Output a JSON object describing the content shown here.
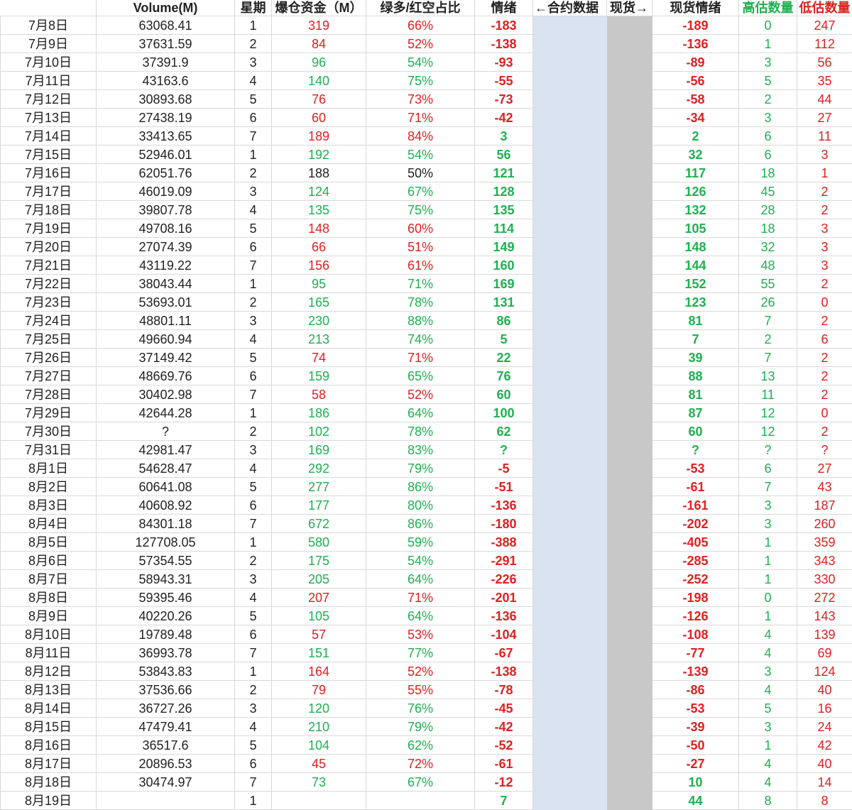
{
  "columns": {
    "date": "",
    "volume": "Volume(M)",
    "weekday": "星期",
    "liquidation": "爆仓资金（M）",
    "long_short_ratio": "绿多/红空占比",
    "sentiment": "情绪",
    "contract_data": "←合约数据",
    "spot": "现货→",
    "spot_sentiment": "现货情绪",
    "high_count": "高估数量",
    "low_count": "低估数量"
  },
  "colors": {
    "red": "#e02020",
    "green": "#1fb050",
    "blue_band": "#dae3f1",
    "gray_band": "#c8c8c8"
  },
  "rows": [
    {
      "date": "7月8日",
      "volume": "63068.41",
      "weekday": "1",
      "liq": "319",
      "liq_c": "red",
      "ratio": "66%",
      "ratio_c": "red",
      "sent": "-183",
      "sent_c": "red",
      "spot": "-189",
      "spot_c": "red",
      "high": "0",
      "low": "247"
    },
    {
      "date": "7月9日",
      "volume": "37631.59",
      "weekday": "2",
      "liq": "84",
      "liq_c": "red",
      "ratio": "52%",
      "ratio_c": "red",
      "sent": "-138",
      "sent_c": "red",
      "spot": "-136",
      "spot_c": "red",
      "high": "1",
      "low": "112"
    },
    {
      "date": "7月10日",
      "volume": "37391.9",
      "weekday": "3",
      "liq": "96",
      "liq_c": "green",
      "ratio": "54%",
      "ratio_c": "green",
      "sent": "-93",
      "sent_c": "red",
      "spot": "-89",
      "spot_c": "red",
      "high": "3",
      "low": "56"
    },
    {
      "date": "7月11日",
      "volume": "43163.6",
      "weekday": "4",
      "liq": "140",
      "liq_c": "green",
      "ratio": "75%",
      "ratio_c": "green",
      "sent": "-55",
      "sent_c": "red",
      "spot": "-56",
      "spot_c": "red",
      "high": "5",
      "low": "35"
    },
    {
      "date": "7月12日",
      "volume": "30893.68",
      "weekday": "5",
      "liq": "76",
      "liq_c": "red",
      "ratio": "73%",
      "ratio_c": "red",
      "sent": "-73",
      "sent_c": "red",
      "spot": "-58",
      "spot_c": "red",
      "high": "2",
      "low": "44"
    },
    {
      "date": "7月13日",
      "volume": "27438.19",
      "weekday": "6",
      "liq": "60",
      "liq_c": "red",
      "ratio": "71%",
      "ratio_c": "red",
      "sent": "-42",
      "sent_c": "red",
      "spot": "-34",
      "spot_c": "red",
      "high": "3",
      "low": "27"
    },
    {
      "date": "7月14日",
      "volume": "33413.65",
      "weekday": "7",
      "liq": "189",
      "liq_c": "red",
      "ratio": "84%",
      "ratio_c": "red",
      "sent": "3",
      "sent_c": "green",
      "spot": "2",
      "spot_c": "green",
      "high": "6",
      "low": "11"
    },
    {
      "date": "7月15日",
      "volume": "52946.01",
      "weekday": "1",
      "liq": "192",
      "liq_c": "green",
      "ratio": "54%",
      "ratio_c": "green",
      "sent": "56",
      "sent_c": "green",
      "spot": "32",
      "spot_c": "green",
      "high": "6",
      "low": "3"
    },
    {
      "date": "7月16日",
      "volume": "62051.76",
      "weekday": "2",
      "liq": "188",
      "liq_c": "black",
      "ratio": "50%",
      "ratio_c": "black",
      "sent": "121",
      "sent_c": "green",
      "spot": "117",
      "spot_c": "green",
      "high": "18",
      "low": "1"
    },
    {
      "date": "7月17日",
      "volume": "46019.09",
      "weekday": "3",
      "liq": "124",
      "liq_c": "green",
      "ratio": "67%",
      "ratio_c": "green",
      "sent": "128",
      "sent_c": "green",
      "spot": "126",
      "spot_c": "green",
      "high": "45",
      "low": "2"
    },
    {
      "date": "7月18日",
      "volume": "39807.78",
      "weekday": "4",
      "liq": "135",
      "liq_c": "green",
      "ratio": "75%",
      "ratio_c": "green",
      "sent": "135",
      "sent_c": "green",
      "spot": "132",
      "spot_c": "green",
      "high": "28",
      "low": "2"
    },
    {
      "date": "7月19日",
      "volume": "49708.16",
      "weekday": "5",
      "liq": "148",
      "liq_c": "red",
      "ratio": "60%",
      "ratio_c": "red",
      "sent": "114",
      "sent_c": "green",
      "spot": "105",
      "spot_c": "green",
      "high": "18",
      "low": "3"
    },
    {
      "date": "7月20日",
      "volume": "27074.39",
      "weekday": "6",
      "liq": "66",
      "liq_c": "red",
      "ratio": "51%",
      "ratio_c": "red",
      "sent": "149",
      "sent_c": "green",
      "spot": "148",
      "spot_c": "green",
      "high": "32",
      "low": "3"
    },
    {
      "date": "7月21日",
      "volume": "43119.22",
      "weekday": "7",
      "liq": "156",
      "liq_c": "red",
      "ratio": "61%",
      "ratio_c": "red",
      "sent": "160",
      "sent_c": "green",
      "spot": "144",
      "spot_c": "green",
      "high": "48",
      "low": "3"
    },
    {
      "date": "7月22日",
      "volume": "38043.44",
      "weekday": "1",
      "liq": "95",
      "liq_c": "green",
      "ratio": "71%",
      "ratio_c": "green",
      "sent": "169",
      "sent_c": "green",
      "spot": "152",
      "spot_c": "green",
      "high": "55",
      "low": "2"
    },
    {
      "date": "7月23日",
      "volume": "53693.01",
      "weekday": "2",
      "liq": "165",
      "liq_c": "green",
      "ratio": "78%",
      "ratio_c": "green",
      "sent": "131",
      "sent_c": "green",
      "spot": "123",
      "spot_c": "green",
      "high": "26",
      "low": "0"
    },
    {
      "date": "7月24日",
      "volume": "48801.11",
      "weekday": "3",
      "liq": "230",
      "liq_c": "green",
      "ratio": "88%",
      "ratio_c": "green",
      "sent": "86",
      "sent_c": "green",
      "spot": "81",
      "spot_c": "green",
      "high": "7",
      "low": "2"
    },
    {
      "date": "7月25日",
      "volume": "49660.94",
      "weekday": "4",
      "liq": "213",
      "liq_c": "green",
      "ratio": "74%",
      "ratio_c": "green",
      "sent": "5",
      "sent_c": "green",
      "spot": "7",
      "spot_c": "green",
      "high": "2",
      "low": "6"
    },
    {
      "date": "7月26日",
      "volume": "37149.42",
      "weekday": "5",
      "liq": "74",
      "liq_c": "red",
      "ratio": "71%",
      "ratio_c": "red",
      "sent": "22",
      "sent_c": "green",
      "spot": "39",
      "spot_c": "green",
      "high": "7",
      "low": "2"
    },
    {
      "date": "7月27日",
      "volume": "48669.76",
      "weekday": "6",
      "liq": "159",
      "liq_c": "green",
      "ratio": "65%",
      "ratio_c": "green",
      "sent": "76",
      "sent_c": "green",
      "spot": "88",
      "spot_c": "green",
      "high": "13",
      "low": "2"
    },
    {
      "date": "7月28日",
      "volume": "30402.98",
      "weekday": "7",
      "liq": "58",
      "liq_c": "red",
      "ratio": "52%",
      "ratio_c": "red",
      "sent": "60",
      "sent_c": "green",
      "spot": "81",
      "spot_c": "green",
      "high": "11",
      "low": "2"
    },
    {
      "date": "7月29日",
      "volume": "42644.28",
      "weekday": "1",
      "liq": "186",
      "liq_c": "green",
      "ratio": "64%",
      "ratio_c": "green",
      "sent": "100",
      "sent_c": "green",
      "spot": "87",
      "spot_c": "green",
      "high": "12",
      "low": "0"
    },
    {
      "date": "7月30日",
      "volume": "?",
      "weekday": "2",
      "liq": "102",
      "liq_c": "green",
      "ratio": "78%",
      "ratio_c": "green",
      "sent": "62",
      "sent_c": "green",
      "spot": "60",
      "spot_c": "green",
      "high": "12",
      "low": "2"
    },
    {
      "date": "7月31日",
      "volume": "42981.47",
      "weekday": "3",
      "liq": "169",
      "liq_c": "green",
      "ratio": "83%",
      "ratio_c": "green",
      "sent": "?",
      "sent_c": "green",
      "spot": "?",
      "spot_c": "green",
      "high": "?",
      "low": "?"
    },
    {
      "date": "8月1日",
      "volume": "54628.47",
      "weekday": "4",
      "liq": "292",
      "liq_c": "green",
      "ratio": "79%",
      "ratio_c": "green",
      "sent": "-5",
      "sent_c": "red",
      "spot": "-53",
      "spot_c": "red",
      "high": "6",
      "low": "27"
    },
    {
      "date": "8月2日",
      "volume": "60641.08",
      "weekday": "5",
      "liq": "277",
      "liq_c": "green",
      "ratio": "86%",
      "ratio_c": "green",
      "sent": "-51",
      "sent_c": "red",
      "spot": "-61",
      "spot_c": "red",
      "high": "7",
      "low": "43"
    },
    {
      "date": "8月3日",
      "volume": "40608.92",
      "weekday": "6",
      "liq": "177",
      "liq_c": "green",
      "ratio": "80%",
      "ratio_c": "green",
      "sent": "-136",
      "sent_c": "red",
      "spot": "-161",
      "spot_c": "red",
      "high": "3",
      "low": "187"
    },
    {
      "date": "8月4日",
      "volume": "84301.18",
      "weekday": "7",
      "liq": "672",
      "liq_c": "green",
      "ratio": "86%",
      "ratio_c": "green",
      "sent": "-180",
      "sent_c": "red",
      "spot": "-202",
      "spot_c": "red",
      "high": "3",
      "low": "260"
    },
    {
      "date": "8月5日",
      "volume": "127708.05",
      "weekday": "1",
      "liq": "580",
      "liq_c": "green",
      "ratio": "59%",
      "ratio_c": "green",
      "sent": "-388",
      "sent_c": "red",
      "spot": "-405",
      "spot_c": "red",
      "high": "1",
      "low": "359"
    },
    {
      "date": "8月6日",
      "volume": "57354.55",
      "weekday": "2",
      "liq": "175",
      "liq_c": "green",
      "ratio": "54%",
      "ratio_c": "green",
      "sent": "-291",
      "sent_c": "red",
      "spot": "-285",
      "spot_c": "red",
      "high": "1",
      "low": "343"
    },
    {
      "date": "8月7日",
      "volume": "58943.31",
      "weekday": "3",
      "liq": "205",
      "liq_c": "green",
      "ratio": "64%",
      "ratio_c": "green",
      "sent": "-226",
      "sent_c": "red",
      "spot": "-252",
      "spot_c": "red",
      "high": "1",
      "low": "330"
    },
    {
      "date": "8月8日",
      "volume": "59395.46",
      "weekday": "4",
      "liq": "207",
      "liq_c": "red",
      "ratio": "71%",
      "ratio_c": "red",
      "sent": "-201",
      "sent_c": "red",
      "spot": "-198",
      "spot_c": "red",
      "high": "0",
      "low": "272"
    },
    {
      "date": "8月9日",
      "volume": "40220.26",
      "weekday": "5",
      "liq": "105",
      "liq_c": "green",
      "ratio": "64%",
      "ratio_c": "green",
      "sent": "-136",
      "sent_c": "red",
      "spot": "-126",
      "spot_c": "red",
      "high": "1",
      "low": "143"
    },
    {
      "date": "8月10日",
      "volume": "19789.48",
      "weekday": "6",
      "liq": "57",
      "liq_c": "red",
      "ratio": "53%",
      "ratio_c": "red",
      "sent": "-104",
      "sent_c": "red",
      "spot": "-108",
      "spot_c": "red",
      "high": "4",
      "low": "139"
    },
    {
      "date": "8月11日",
      "volume": "36993.78",
      "weekday": "7",
      "liq": "151",
      "liq_c": "green",
      "ratio": "77%",
      "ratio_c": "green",
      "sent": "-67",
      "sent_c": "red",
      "spot": "-77",
      "spot_c": "red",
      "high": "4",
      "low": "69"
    },
    {
      "date": "8月12日",
      "volume": "53843.83",
      "weekday": "1",
      "liq": "164",
      "liq_c": "red",
      "ratio": "52%",
      "ratio_c": "red",
      "sent": "-138",
      "sent_c": "red",
      "spot": "-139",
      "spot_c": "red",
      "high": "3",
      "low": "124"
    },
    {
      "date": "8月13日",
      "volume": "37536.66",
      "weekday": "2",
      "liq": "79",
      "liq_c": "red",
      "ratio": "55%",
      "ratio_c": "red",
      "sent": "-78",
      "sent_c": "red",
      "spot": "-86",
      "spot_c": "red",
      "high": "4",
      "low": "40"
    },
    {
      "date": "8月14日",
      "volume": "36727.26",
      "weekday": "3",
      "liq": "120",
      "liq_c": "green",
      "ratio": "76%",
      "ratio_c": "green",
      "sent": "-45",
      "sent_c": "red",
      "spot": "-53",
      "spot_c": "red",
      "high": "5",
      "low": "16"
    },
    {
      "date": "8月15日",
      "volume": "47479.41",
      "weekday": "4",
      "liq": "210",
      "liq_c": "green",
      "ratio": "79%",
      "ratio_c": "green",
      "sent": "-42",
      "sent_c": "red",
      "spot": "-39",
      "spot_c": "red",
      "high": "3",
      "low": "24"
    },
    {
      "date": "8月16日",
      "volume": "36517.6",
      "weekday": "5",
      "liq": "104",
      "liq_c": "green",
      "ratio": "62%",
      "ratio_c": "green",
      "sent": "-52",
      "sent_c": "red",
      "spot": "-50",
      "spot_c": "red",
      "high": "1",
      "low": "42"
    },
    {
      "date": "8月17日",
      "volume": "20896.53",
      "weekday": "6",
      "liq": "45",
      "liq_c": "red",
      "ratio": "72%",
      "ratio_c": "red",
      "sent": "-61",
      "sent_c": "red",
      "spot": "-27",
      "spot_c": "red",
      "high": "4",
      "low": "40"
    },
    {
      "date": "8月18日",
      "volume": "30474.97",
      "weekday": "7",
      "liq": "73",
      "liq_c": "green",
      "ratio": "67%",
      "ratio_c": "green",
      "sent": "-12",
      "sent_c": "red",
      "spot": "10",
      "spot_c": "green",
      "high": "4",
      "low": "14"
    },
    {
      "date": "8月19日",
      "volume": "",
      "weekday": "1",
      "liq": "",
      "liq_c": "black",
      "ratio": "",
      "ratio_c": "black",
      "sent": "7",
      "sent_c": "green",
      "spot": "44",
      "spot_c": "green",
      "high": "8",
      "low": "8"
    }
  ]
}
